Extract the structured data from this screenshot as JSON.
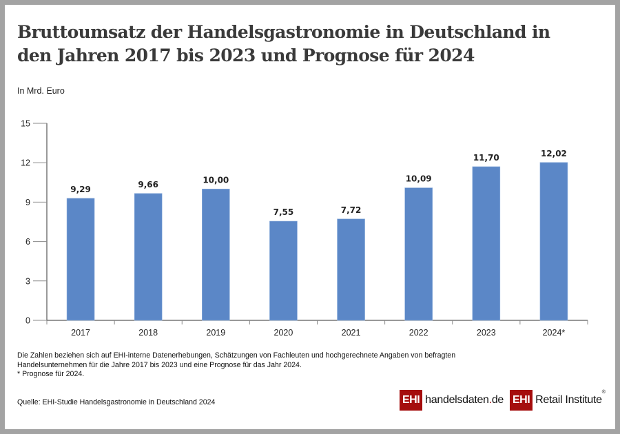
{
  "header": {
    "title": "Bruttoumsatz der Handelsgastronomie in Deutschland in den Jahren 2017 bis 2023 und Prognose für 2024",
    "unit": "In Mrd. Euro"
  },
  "chart_data": {
    "type": "bar",
    "title": "Bruttoumsatz der Handelsgastronomie in Deutschland in den Jahren 2017 bis 2023 und Prognose für 2024",
    "xlabel": "",
    "ylabel": "In Mrd. Euro",
    "categories": [
      "2017",
      "2018",
      "2019",
      "2020",
      "2021",
      "2022",
      "2023",
      "2024*"
    ],
    "values": [
      9.29,
      9.66,
      10.0,
      7.55,
      7.72,
      10.09,
      11.7,
      12.02
    ],
    "data_labels": [
      "9,29",
      "9,66",
      "10,00",
      "7,55",
      "7,72",
      "10,09",
      "11,70",
      "12,02"
    ],
    "ylim": [
      0,
      15
    ],
    "yticks": [
      0,
      3,
      6,
      9,
      12,
      15
    ],
    "grid": false,
    "legend": "none",
    "bar_color": "#5b87c7"
  },
  "footer": {
    "notes": [
      "Die Zahlen beziehen sich auf EHI-interne Datenerhebungen, Schätzungen von Fachleuten und hochgerechnete Angaben von befragten",
      "Handelsunternehmen für die Jahre 2017 bis 2023 und eine Prognose für das Jahr 2024.",
      "* Prognose für 2024."
    ],
    "source": "Quelle: EHI-Studie Handelsgastronomie in Deutschland 2024"
  },
  "logos": {
    "handelsdaten": {
      "badge": "EHI",
      "name_main": "handelsdaten",
      "name_dot": ".",
      "name_tld": "de"
    },
    "retail_institute": {
      "badge": "EHI",
      "name": "Retail Institute",
      "reg": "®"
    }
  },
  "colors": {
    "brand_red": "#a50d0d",
    "bar": "#5b87c7",
    "frame": "#a3a3a3"
  }
}
